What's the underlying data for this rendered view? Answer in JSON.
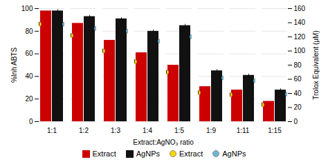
{
  "chart_data": {
    "type": "bar",
    "xlabel": "Extract:AgNO₃ ratio",
    "ylabel": "%Inh ABTS",
    "y2label": "Trolox Equivalent (μM)",
    "categories": [
      "1:1",
      "1:2",
      "1:3",
      "1:4",
      "1:5",
      "1:9",
      "1:11",
      "1:15"
    ],
    "ylim": [
      0,
      100
    ],
    "yticks": [
      0,
      20,
      40,
      60,
      80,
      100
    ],
    "y2lim": [
      0,
      160
    ],
    "y2ticks": [
      0,
      20,
      40,
      60,
      80,
      100,
      120,
      140,
      160
    ],
    "grid": true,
    "legend": "bottom",
    "series": [
      {
        "name": "Extract",
        "type": "bar",
        "color": "#CC0000",
        "values": [
          98,
          87,
          72,
          61,
          50,
          31,
          28,
          18
        ]
      },
      {
        "name": "AgNPs",
        "type": "bar",
        "color": "#111111",
        "values": [
          98,
          93,
          91,
          80,
          85,
          45,
          41,
          28
        ],
        "errors": [
          1.2,
          1.2,
          1.2,
          1.2,
          1.2,
          1.2,
          1.2,
          1.2
        ]
      },
      {
        "name": "Extract",
        "type": "scatter",
        "axis": "y2",
        "color": "#FFD700",
        "marker": "circle",
        "values": [
          138,
          122,
          100,
          85,
          70,
          41,
          38,
          24
        ],
        "errors": [
          2.5,
          2.5,
          2.5,
          2.5,
          2.5,
          2.5,
          2.5,
          2.5
        ]
      },
      {
        "name": "AgNPs",
        "type": "scatter",
        "axis": "y2",
        "color": "#6BB8D4",
        "marker": "circle",
        "values": [
          138,
          132,
          128,
          114,
          120,
          62,
          58,
          39
        ],
        "errors": [
          2.5,
          2.5,
          2.5,
          2.5,
          2.5,
          2.5,
          2.5,
          2.5
        ]
      }
    ]
  }
}
